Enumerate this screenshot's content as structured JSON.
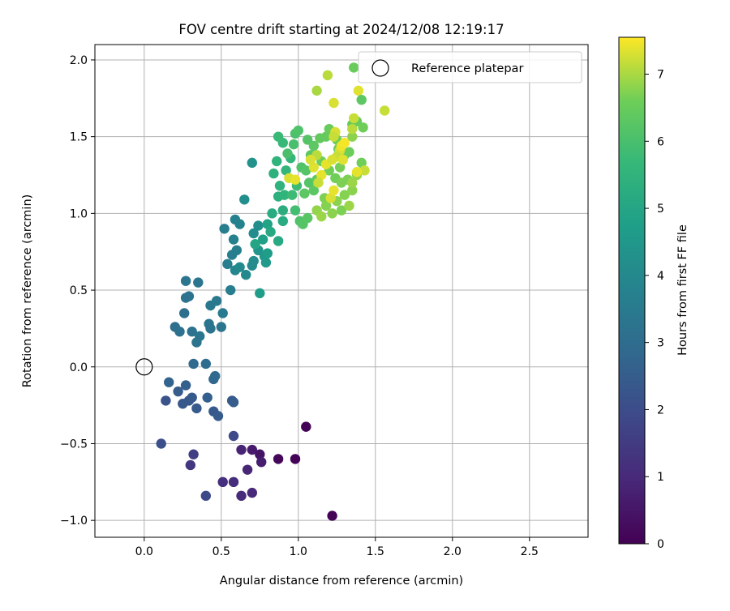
{
  "chart_data": {
    "type": "scatter",
    "title": "FOV centre drift starting at 2024/12/08 12:19:17",
    "xlabel": "Angular distance from reference (arcmin)",
    "ylabel": "Rotation from reference (arcmin)",
    "xlim": [
      -0.32,
      2.88
    ],
    "ylim": [
      -1.11,
      2.1
    ],
    "xticks": [
      0.0,
      0.5,
      1.0,
      1.5,
      2.0,
      2.5
    ],
    "xtick_labels": [
      "0.0",
      "0.5",
      "1.0",
      "1.5",
      "2.0",
      "2.5"
    ],
    "yticks": [
      -1.0,
      -0.5,
      0.0,
      0.5,
      1.0,
      1.5,
      2.0
    ],
    "ytick_labels": [
      "−1.0",
      "−0.5",
      "0.0",
      "0.5",
      "1.0",
      "1.5",
      "2.0"
    ],
    "grid": true,
    "legend": {
      "placement": "top-right",
      "entries": [
        "Reference platepar"
      ]
    },
    "reference_point": {
      "x": 0.0,
      "y": 0.0,
      "label": "Reference platepar"
    },
    "colorbar": {
      "label": "Hours from first FF file",
      "range": [
        0,
        7.55
      ],
      "ticks": [
        0,
        1,
        2,
        3,
        4,
        5,
        6,
        7
      ],
      "tick_labels": [
        "0",
        "1",
        "2",
        "3",
        "4",
        "5",
        "6",
        "7"
      ],
      "colormap": "viridis"
    },
    "points": [
      {
        "x": 1.05,
        "y": -0.39,
        "c": 0.05
      },
      {
        "x": 0.98,
        "y": -0.6,
        "c": 0.05
      },
      {
        "x": 1.22,
        "y": -0.97,
        "c": 0.05
      },
      {
        "x": 0.87,
        "y": -0.6,
        "c": 0.15
      },
      {
        "x": 0.75,
        "y": -0.57,
        "c": 0.45
      },
      {
        "x": 0.7,
        "y": -0.54,
        "c": 0.6
      },
      {
        "x": 0.76,
        "y": -0.62,
        "c": 0.7
      },
      {
        "x": 0.63,
        "y": -0.54,
        "c": 0.85
      },
      {
        "x": 0.67,
        "y": -0.67,
        "c": 0.9
      },
      {
        "x": 0.7,
        "y": -0.82,
        "c": 0.95
      },
      {
        "x": 0.63,
        "y": -0.84,
        "c": 1.0
      },
      {
        "x": 0.58,
        "y": -0.75,
        "c": 1.1
      },
      {
        "x": 0.51,
        "y": -0.75,
        "c": 1.15
      },
      {
        "x": 0.3,
        "y": -0.64,
        "c": 1.4
      },
      {
        "x": 0.32,
        "y": -0.57,
        "c": 1.6
      },
      {
        "x": 0.58,
        "y": -0.45,
        "c": 1.9
      },
      {
        "x": 0.4,
        "y": -0.84,
        "c": 1.9
      },
      {
        "x": 0.11,
        "y": -0.5,
        "c": 2.1
      },
      {
        "x": 0.14,
        "y": -0.22,
        "c": 2.2
      },
      {
        "x": 0.25,
        "y": -0.24,
        "c": 2.3
      },
      {
        "x": 0.29,
        "y": -0.22,
        "c": 2.35
      },
      {
        "x": 0.31,
        "y": -0.2,
        "c": 2.4
      },
      {
        "x": 0.34,
        "y": -0.27,
        "c": 2.45
      },
      {
        "x": 0.22,
        "y": -0.16,
        "c": 2.5
      },
      {
        "x": 0.45,
        "y": -0.29,
        "c": 2.4
      },
      {
        "x": 0.48,
        "y": -0.32,
        "c": 2.45
      },
      {
        "x": 0.57,
        "y": -0.22,
        "c": 2.4
      },
      {
        "x": 0.58,
        "y": -0.23,
        "c": 2.5
      },
      {
        "x": 0.41,
        "y": -0.2,
        "c": 2.6
      },
      {
        "x": 0.27,
        "y": -0.12,
        "c": 2.6
      },
      {
        "x": 0.16,
        "y": -0.1,
        "c": 2.7
      },
      {
        "x": 0.45,
        "y": -0.08,
        "c": 2.8
      },
      {
        "x": 0.46,
        "y": -0.06,
        "c": 2.9
      },
      {
        "x": 0.32,
        "y": 0.02,
        "c": 2.9
      },
      {
        "x": 0.4,
        "y": 0.02,
        "c": 3.0
      },
      {
        "x": 0.2,
        "y": 0.26,
        "c": 3.1
      },
      {
        "x": 0.23,
        "y": 0.23,
        "c": 3.15
      },
      {
        "x": 0.31,
        "y": 0.23,
        "c": 3.2
      },
      {
        "x": 0.34,
        "y": 0.16,
        "c": 3.25
      },
      {
        "x": 0.36,
        "y": 0.2,
        "c": 3.3
      },
      {
        "x": 0.43,
        "y": 0.25,
        "c": 3.2
      },
      {
        "x": 0.42,
        "y": 0.28,
        "c": 3.25
      },
      {
        "x": 0.5,
        "y": 0.26,
        "c": 3.3
      },
      {
        "x": 0.26,
        "y": 0.35,
        "c": 3.1
      },
      {
        "x": 0.27,
        "y": 0.45,
        "c": 3.15
      },
      {
        "x": 0.29,
        "y": 0.46,
        "c": 3.2
      },
      {
        "x": 0.27,
        "y": 0.56,
        "c": 3.3
      },
      {
        "x": 0.35,
        "y": 0.55,
        "c": 3.35
      },
      {
        "x": 0.43,
        "y": 0.4,
        "c": 3.4
      },
      {
        "x": 0.47,
        "y": 0.43,
        "c": 3.45
      },
      {
        "x": 0.51,
        "y": 0.35,
        "c": 3.5
      },
      {
        "x": 0.56,
        "y": 0.5,
        "c": 3.6
      },
      {
        "x": 0.54,
        "y": 0.67,
        "c": 3.6
      },
      {
        "x": 0.57,
        "y": 0.73,
        "c": 3.6
      },
      {
        "x": 0.6,
        "y": 0.76,
        "c": 3.65
      },
      {
        "x": 0.58,
        "y": 0.83,
        "c": 3.7
      },
      {
        "x": 0.52,
        "y": 0.9,
        "c": 3.6
      },
      {
        "x": 0.59,
        "y": 0.96,
        "c": 3.75
      },
      {
        "x": 0.62,
        "y": 0.93,
        "c": 3.8
      },
      {
        "x": 0.59,
        "y": 0.63,
        "c": 3.9
      },
      {
        "x": 0.62,
        "y": 0.65,
        "c": 4.0
      },
      {
        "x": 0.66,
        "y": 0.6,
        "c": 4.0
      },
      {
        "x": 0.7,
        "y": 0.66,
        "c": 4.05
      },
      {
        "x": 0.71,
        "y": 0.69,
        "c": 4.1
      },
      {
        "x": 0.71,
        "y": 0.87,
        "c": 4.1
      },
      {
        "x": 0.74,
        "y": 0.92,
        "c": 4.2
      },
      {
        "x": 0.65,
        "y": 1.09,
        "c": 4.2
      },
      {
        "x": 0.7,
        "y": 1.33,
        "c": 4.3
      },
      {
        "x": 0.74,
        "y": 0.76,
        "c": 4.4
      },
      {
        "x": 0.78,
        "y": 0.72,
        "c": 4.5
      },
      {
        "x": 0.79,
        "y": 0.68,
        "c": 4.6
      },
      {
        "x": 0.75,
        "y": 0.48,
        "c": 4.7
      },
      {
        "x": 0.8,
        "y": 0.74,
        "c": 4.7
      },
      {
        "x": 0.77,
        "y": 0.83,
        "c": 4.8
      },
      {
        "x": 0.8,
        "y": 0.93,
        "c": 4.9
      },
      {
        "x": 0.72,
        "y": 0.8,
        "c": 5.0
      },
      {
        "x": 0.82,
        "y": 0.88,
        "c": 5.1
      },
      {
        "x": 0.87,
        "y": 0.82,
        "c": 5.1
      },
      {
        "x": 0.9,
        "y": 0.95,
        "c": 5.2
      },
      {
        "x": 0.83,
        "y": 1.0,
        "c": 5.2
      },
      {
        "x": 0.9,
        "y": 1.02,
        "c": 5.3
      },
      {
        "x": 0.87,
        "y": 1.11,
        "c": 5.35
      },
      {
        "x": 0.84,
        "y": 1.26,
        "c": 5.4
      },
      {
        "x": 0.88,
        "y": 1.18,
        "c": 5.45
      },
      {
        "x": 0.91,
        "y": 1.12,
        "c": 5.5
      },
      {
        "x": 0.86,
        "y": 1.34,
        "c": 5.5
      },
      {
        "x": 0.92,
        "y": 1.28,
        "c": 5.55
      },
      {
        "x": 0.95,
        "y": 1.36,
        "c": 5.6
      },
      {
        "x": 0.9,
        "y": 1.46,
        "c": 5.7
      },
      {
        "x": 0.87,
        "y": 1.5,
        "c": 5.75
      },
      {
        "x": 0.96,
        "y": 1.12,
        "c": 5.8
      },
      {
        "x": 0.99,
        "y": 1.18,
        "c": 5.8
      },
      {
        "x": 0.98,
        "y": 1.02,
        "c": 5.9
      },
      {
        "x": 1.01,
        "y": 0.95,
        "c": 6.1
      },
      {
        "x": 1.03,
        "y": 0.93,
        "c": 6.2
      },
      {
        "x": 1.06,
        "y": 0.97,
        "c": 6.25
      },
      {
        "x": 0.93,
        "y": 1.39,
        "c": 6.0
      },
      {
        "x": 0.97,
        "y": 1.45,
        "c": 6.0
      },
      {
        "x": 0.98,
        "y": 1.52,
        "c": 6.05
      },
      {
        "x": 1.0,
        "y": 1.54,
        "c": 6.1
      },
      {
        "x": 1.02,
        "y": 1.3,
        "c": 6.1
      },
      {
        "x": 1.05,
        "y": 1.28,
        "c": 6.2
      },
      {
        "x": 1.07,
        "y": 1.2,
        "c": 6.2
      },
      {
        "x": 1.04,
        "y": 1.13,
        "c": 6.3
      },
      {
        "x": 1.1,
        "y": 1.15,
        "c": 6.3
      },
      {
        "x": 1.12,
        "y": 1.22,
        "c": 6.35
      },
      {
        "x": 1.08,
        "y": 1.38,
        "c": 6.3
      },
      {
        "x": 1.06,
        "y": 1.48,
        "c": 6.2
      },
      {
        "x": 1.1,
        "y": 1.44,
        "c": 6.3
      },
      {
        "x": 1.14,
        "y": 1.49,
        "c": 6.4
      },
      {
        "x": 1.18,
        "y": 1.5,
        "c": 6.45
      },
      {
        "x": 1.2,
        "y": 1.55,
        "c": 6.5
      },
      {
        "x": 1.25,
        "y": 1.48,
        "c": 6.55
      },
      {
        "x": 1.26,
        "y": 1.42,
        "c": 6.5
      },
      {
        "x": 1.15,
        "y": 1.34,
        "c": 6.55
      },
      {
        "x": 1.2,
        "y": 1.28,
        "c": 6.6
      },
      {
        "x": 1.24,
        "y": 1.23,
        "c": 6.6
      },
      {
        "x": 1.27,
        "y": 1.3,
        "c": 6.65
      },
      {
        "x": 1.3,
        "y": 1.38,
        "c": 6.6
      },
      {
        "x": 1.33,
        "y": 1.4,
        "c": 6.55
      },
      {
        "x": 1.28,
        "y": 1.2,
        "c": 6.7
      },
      {
        "x": 1.32,
        "y": 1.22,
        "c": 6.7
      },
      {
        "x": 1.3,
        "y": 1.12,
        "c": 6.75
      },
      {
        "x": 1.35,
        "y": 1.15,
        "c": 6.8
      },
      {
        "x": 1.25,
        "y": 1.08,
        "c": 6.8
      },
      {
        "x": 1.17,
        "y": 1.1,
        "c": 6.7
      },
      {
        "x": 1.18,
        "y": 1.05,
        "c": 6.75
      },
      {
        "x": 1.22,
        "y": 1.0,
        "c": 6.8
      },
      {
        "x": 1.28,
        "y": 1.02,
        "c": 6.7
      },
      {
        "x": 1.33,
        "y": 1.05,
        "c": 6.9
      },
      {
        "x": 1.12,
        "y": 1.02,
        "c": 6.85
      },
      {
        "x": 1.15,
        "y": 0.98,
        "c": 6.9
      },
      {
        "x": 1.35,
        "y": 1.2,
        "c": 6.9
      },
      {
        "x": 1.38,
        "y": 1.25,
        "c": 6.85
      },
      {
        "x": 1.41,
        "y": 1.33,
        "c": 6.6
      },
      {
        "x": 1.43,
        "y": 1.28,
        "c": 7.2
      },
      {
        "x": 1.35,
        "y": 1.58,
        "c": 6.4
      },
      {
        "x": 1.38,
        "y": 1.6,
        "c": 6.5
      },
      {
        "x": 1.42,
        "y": 1.56,
        "c": 6.6
      },
      {
        "x": 1.35,
        "y": 1.5,
        "c": 6.8
      },
      {
        "x": 1.35,
        "y": 1.55,
        "c": 7.1
      },
      {
        "x": 1.36,
        "y": 1.62,
        "c": 7.2
      },
      {
        "x": 1.24,
        "y": 1.53,
        "c": 7.3
      },
      {
        "x": 1.23,
        "y": 1.5,
        "c": 7.2
      },
      {
        "x": 1.27,
        "y": 1.41,
        "c": 7.3
      },
      {
        "x": 1.25,
        "y": 1.37,
        "c": 7.2
      },
      {
        "x": 1.12,
        "y": 1.38,
        "c": 7.1
      },
      {
        "x": 1.18,
        "y": 1.32,
        "c": 7.4
      },
      {
        "x": 1.22,
        "y": 1.35,
        "c": 7.3
      },
      {
        "x": 1.29,
        "y": 1.35,
        "c": 7.35
      },
      {
        "x": 1.15,
        "y": 1.25,
        "c": 7.4
      },
      {
        "x": 1.1,
        "y": 1.3,
        "c": 7.35
      },
      {
        "x": 1.08,
        "y": 1.35,
        "c": 7.3
      },
      {
        "x": 1.13,
        "y": 1.2,
        "c": 7.2
      },
      {
        "x": 1.21,
        "y": 1.1,
        "c": 7.3
      },
      {
        "x": 1.23,
        "y": 1.15,
        "c": 7.4
      },
      {
        "x": 1.28,
        "y": 1.44,
        "c": 7.45
      },
      {
        "x": 1.3,
        "y": 1.46,
        "c": 7.5
      },
      {
        "x": 0.94,
        "y": 1.23,
        "c": 7.3
      },
      {
        "x": 0.98,
        "y": 1.22,
        "c": 7.4
      },
      {
        "x": 1.38,
        "y": 1.27,
        "c": 7.4
      },
      {
        "x": 1.12,
        "y": 1.8,
        "c": 7.0
      },
      {
        "x": 1.19,
        "y": 1.9,
        "c": 7.1
      },
      {
        "x": 1.23,
        "y": 1.72,
        "c": 7.3
      },
      {
        "x": 1.39,
        "y": 1.8,
        "c": 7.35
      },
      {
        "x": 1.36,
        "y": 1.95,
        "c": 6.5
      },
      {
        "x": 1.41,
        "y": 1.74,
        "c": 6.3
      },
      {
        "x": 1.56,
        "y": 1.67,
        "c": 7.2
      }
    ]
  }
}
